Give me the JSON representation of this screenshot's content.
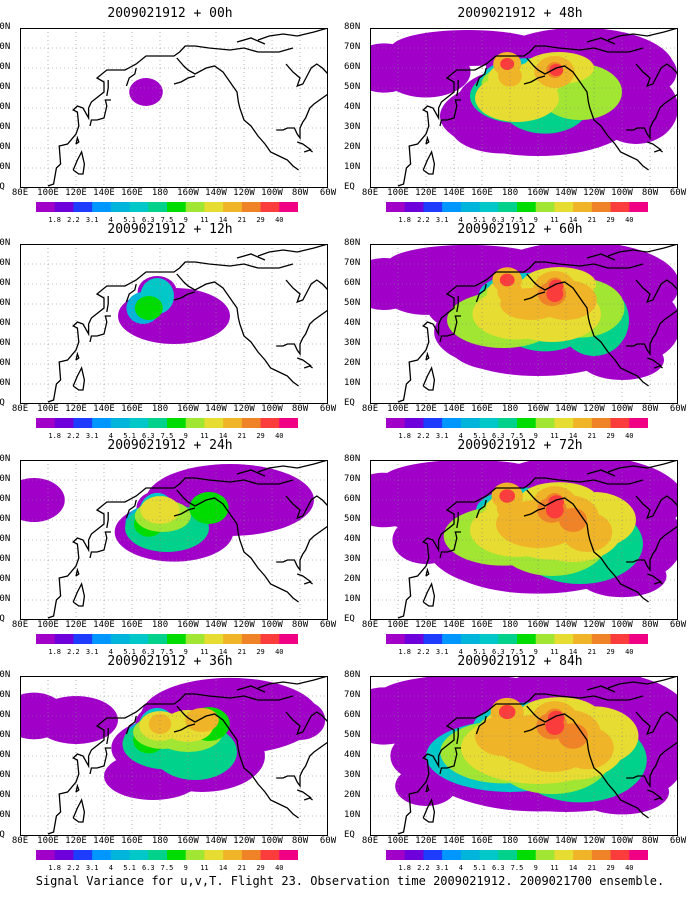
{
  "footer": "Signal Variance for u,v,T. Flight 23. Observation time 2009021912. 2009021700 ensemble.",
  "panels": [
    {
      "title": "2009021912 + 00h",
      "intensity": 0
    },
    {
      "title": "2009021912 + 48h",
      "intensity": 4
    },
    {
      "title": "2009021912 + 12h",
      "intensity": 1
    },
    {
      "title": "2009021912 + 60h",
      "intensity": 5
    },
    {
      "title": "2009021912 + 24h",
      "intensity": 2
    },
    {
      "title": "2009021912 + 72h",
      "intensity": 6
    },
    {
      "title": "2009021912 + 36h",
      "intensity": 3
    },
    {
      "title": "2009021912 + 84h",
      "intensity": 7
    }
  ],
  "x_ticks": [
    "80E",
    "100E",
    "120E",
    "140E",
    "160E",
    "180",
    "160W",
    "140W",
    "120W",
    "100W",
    "80W",
    "60W"
  ],
  "y_ticks": [
    "EQ",
    "10N",
    "20N",
    "30N",
    "40N",
    "50N",
    "60N",
    "70N",
    "80N"
  ],
  "colorbar": {
    "labels": [
      "1.8",
      "2.2",
      "3.1",
      "4",
      "5.1",
      "6.3",
      "7.5",
      "9",
      "11",
      "14",
      "21",
      "29",
      "40"
    ],
    "colors": [
      "#a000c8",
      "#6e00dc",
      "#1e3cff",
      "#0096ff",
      "#00b4dc",
      "#00c8c8",
      "#00d28c",
      "#00dc00",
      "#a0e632",
      "#e6dc32",
      "#f0b428",
      "#f08228",
      "#fa3c3c",
      "#f00082"
    ]
  }
}
